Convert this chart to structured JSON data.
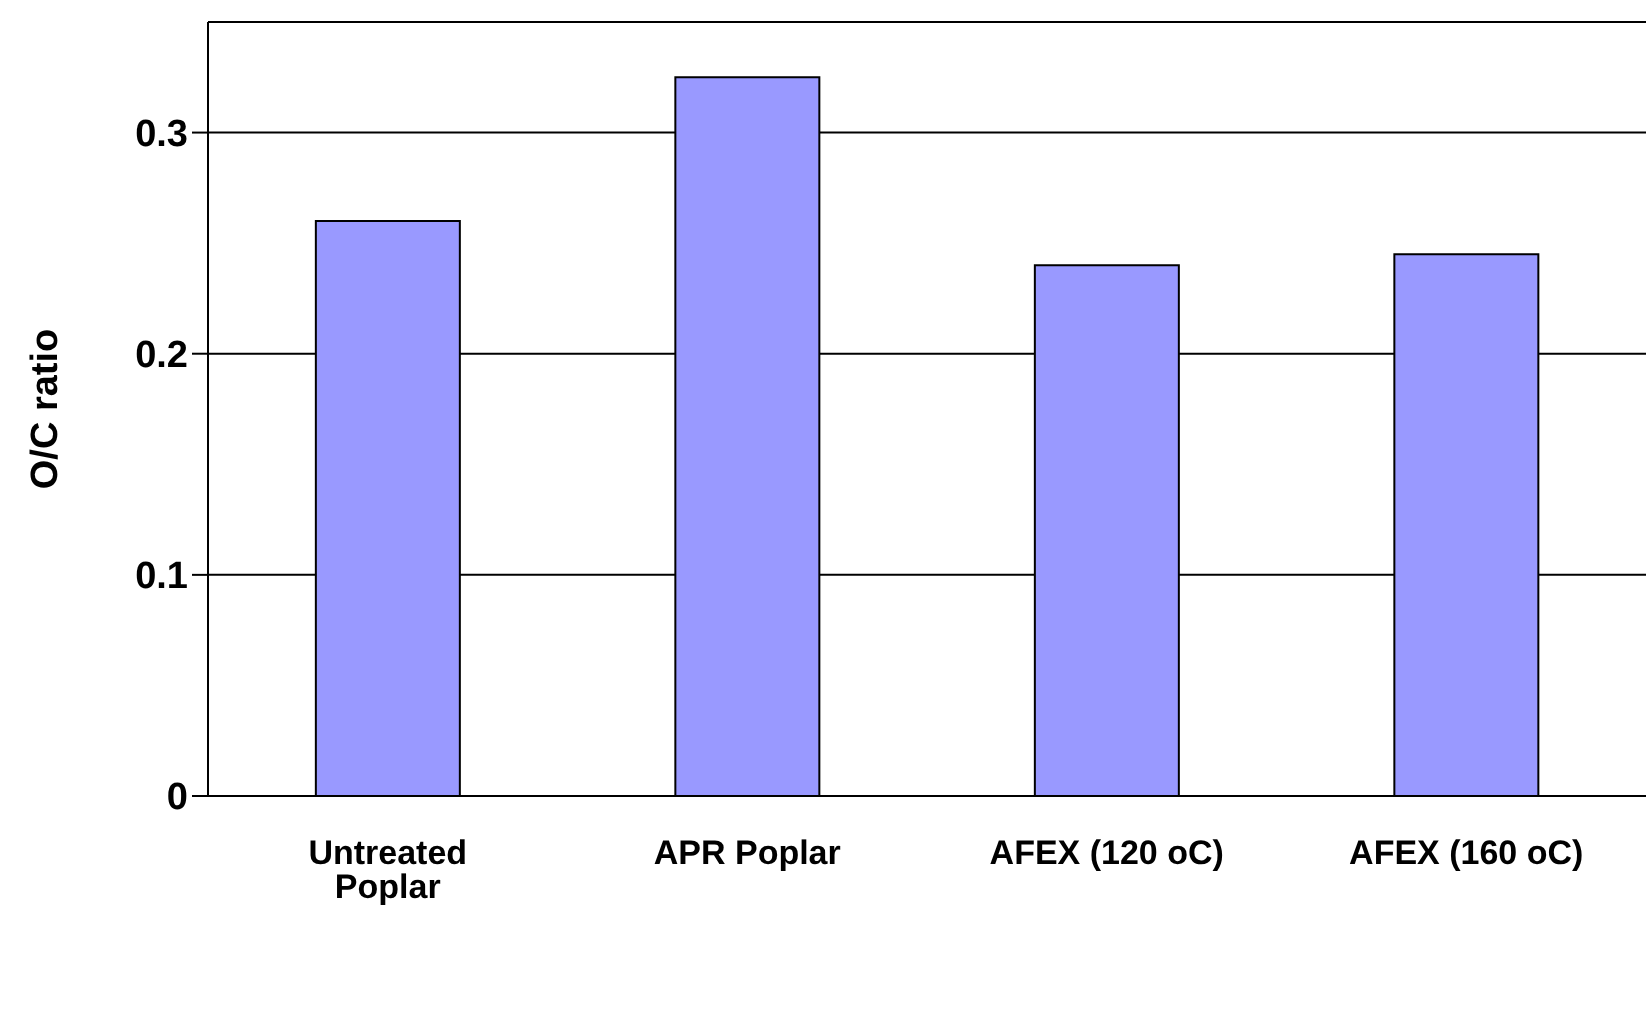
{
  "chart_data": {
    "type": "bar",
    "ylabel": "O/C ratio",
    "categories": [
      "Untreated Poplar",
      "APR Poplar",
      "AFEX (120 oC)",
      "AFEX (160 oC)"
    ],
    "values": [
      0.26,
      0.325,
      0.24,
      0.245
    ],
    "color": "#9999ff",
    "ylim": [
      0,
      0.35
    ],
    "yticks": [
      0,
      0.1,
      0.2,
      0.3
    ],
    "grid": "y"
  }
}
